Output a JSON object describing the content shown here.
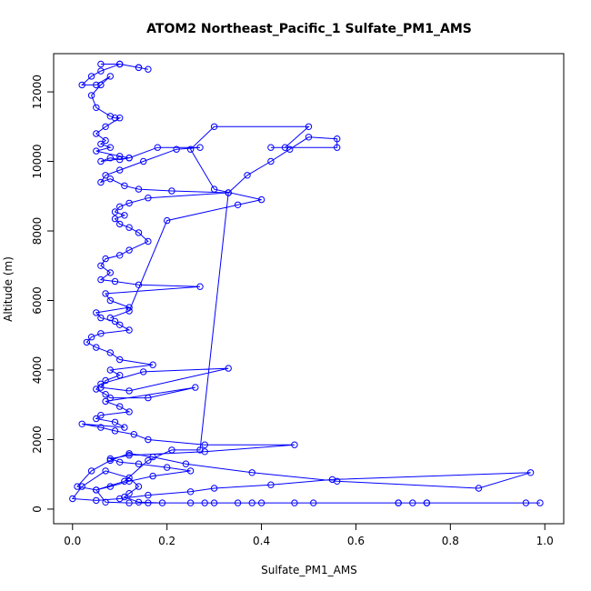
{
  "chart_data": {
    "type": "line",
    "title": "ATOM2 Northeast_Pacific_1 Sulfate_PM1_AMS",
    "xlabel": "Sulfate_PM1_AMS",
    "ylabel": "Altitude (m)",
    "xlim": [
      -0.04,
      1.04
    ],
    "ylim": [
      -420,
      13100
    ],
    "xticks": [
      0.0,
      0.2,
      0.4,
      0.6,
      0.8,
      1.0
    ],
    "xtick_labels": [
      "0.0",
      "0.2",
      "0.4",
      "0.6",
      "0.8",
      "1.0"
    ],
    "yticks": [
      0,
      2000,
      4000,
      6000,
      8000,
      10000,
      12000
    ],
    "ytick_labels": [
      "0",
      "2000",
      "4000",
      "6000",
      "8000",
      "10000",
      "12000"
    ],
    "grid": false,
    "legend": "none",
    "marker": "open-circle",
    "series": [
      {
        "color": "#0000ff",
        "x": [
          0.06,
          0.1,
          0.14,
          0.16,
          0.14,
          0.1,
          0.06,
          0.04,
          0.02,
          0.05,
          0.08,
          0.06,
          0.04,
          0.05,
          0.08,
          0.09,
          0.1,
          0.07,
          0.05,
          0.07,
          0.06,
          0.08,
          0.05,
          0.1,
          0.12,
          0.1,
          0.08,
          0.06,
          0.12,
          0.18,
          0.27,
          0.22,
          0.15,
          0.1,
          0.07,
          0.06,
          0.08,
          0.11,
          0.14,
          0.21,
          0.33,
          0.16,
          0.12,
          0.1,
          0.09,
          0.11,
          0.09,
          0.1,
          0.12,
          0.14,
          0.16,
          0.12,
          0.1,
          0.07,
          0.06,
          0.08,
          0.06,
          0.09,
          0.14,
          0.27,
          0.07,
          0.08,
          0.12,
          0.05,
          0.06,
          0.09,
          0.1,
          0.12,
          0.06,
          0.04,
          0.03,
          0.05,
          0.08,
          0.1,
          0.17,
          0.08,
          0.1,
          0.07,
          0.06,
          0.12,
          0.33,
          0.15,
          0.06,
          0.05,
          0.07,
          0.08,
          0.16,
          0.26,
          0.07,
          0.1,
          0.12,
          0.06,
          0.05,
          0.09,
          0.11,
          0.02,
          0.06,
          0.09,
          0.13,
          0.16,
          0.28,
          0.47,
          0.28,
          0.12,
          0.08,
          0.1,
          0.14,
          0.2,
          0.25,
          0.17,
          0.12,
          0.08,
          0.05,
          0.01,
          0.04,
          0.08,
          0.12,
          0.17,
          0.24,
          0.38,
          0.56,
          0.86,
          0.97,
          0.55,
          0.42,
          0.3,
          0.25,
          0.16,
          0.1,
          0.05,
          0.0,
          0.02,
          0.07,
          0.12,
          0.14,
          0.12,
          0.11,
          0.14,
          0.19,
          0.25,
          0.3,
          0.35,
          0.4,
          0.51,
          0.69,
          0.72,
          0.75,
          0.96,
          0.99,
          0.75,
          0.69,
          0.47,
          0.38,
          0.28,
          0.16,
          0.12,
          0.07,
          0.05,
          0.11,
          0.16,
          0.21,
          0.27,
          0.33,
          0.37,
          0.42,
          0.46,
          0.5,
          0.56,
          0.56,
          0.42,
          0.45,
          0.5,
          0.3,
          0.25,
          0.3,
          0.4,
          0.35,
          0.2,
          0.12,
          0.08
        ],
        "y": [
          12800,
          12800,
          12700,
          12650,
          12700,
          12800,
          12600,
          12450,
          12200,
          12200,
          12450,
          12200,
          11900,
          11550,
          11300,
          11250,
          11250,
          11000,
          10800,
          10600,
          10500,
          10400,
          10300,
          10150,
          10100,
          10050,
          10100,
          10000,
          10100,
          10400,
          10400,
          10350,
          10000,
          9750,
          9600,
          9400,
          9500,
          9300,
          9200,
          9150,
          9100,
          8950,
          8800,
          8700,
          8550,
          8450,
          8350,
          8200,
          8100,
          7950,
          7700,
          7450,
          7300,
          7200,
          7000,
          6800,
          6600,
          6550,
          6450,
          6400,
          6200,
          6000,
          5800,
          5650,
          5500,
          5400,
          5300,
          5150,
          5050,
          4950,
          4800,
          4650,
          4500,
          4300,
          4150,
          4000,
          3850,
          3700,
          3500,
          3400,
          4050,
          3950,
          3600,
          3450,
          3300,
          3200,
          3200,
          3500,
          3100,
          2950,
          2800,
          2700,
          2600,
          2500,
          2350,
          2450,
          2350,
          2250,
          2150,
          2000,
          1850,
          1850,
          1650,
          1550,
          1450,
          1350,
          1300,
          1200,
          1100,
          950,
          800,
          650,
          550,
          650,
          1100,
          1400,
          1600,
          1500,
          1300,
          1050,
          800,
          600,
          1050,
          850,
          700,
          600,
          500,
          400,
          300,
          250,
          300,
          650,
          1100,
          900,
          650,
          450,
          350,
          200,
          180,
          180,
          180,
          180,
          180,
          180,
          180,
          180,
          180,
          180,
          180,
          180,
          180,
          180,
          180,
          180,
          180,
          180,
          200,
          550,
          800,
          1400,
          1700,
          1700,
          9100,
          9600,
          10000,
          10350,
          10700,
          10650,
          10400,
          10400,
          10400,
          11000,
          11000,
          10350,
          9200,
          8900,
          8750,
          8300,
          5700,
          5500
        ]
      }
    ]
  }
}
